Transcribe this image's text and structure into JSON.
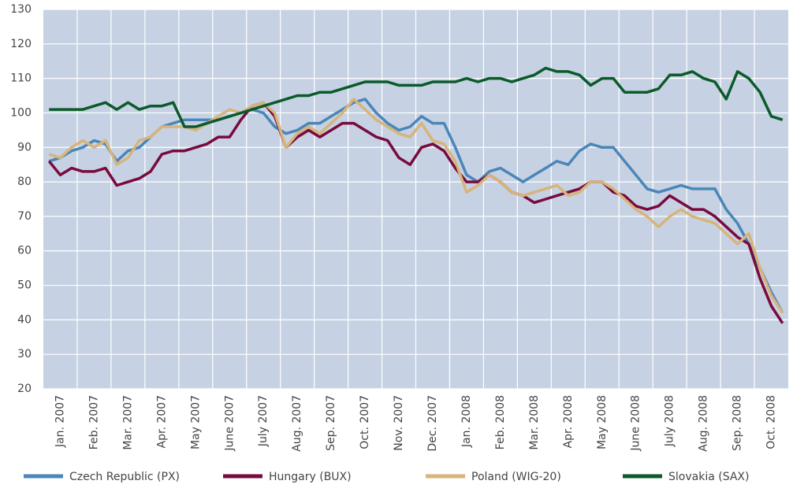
{
  "chart_data": {
    "type": "line",
    "categories": [
      null,
      "Jan. 2007",
      null,
      null,
      "Feb. 2007",
      null,
      null,
      "Mar. 2007",
      null,
      null,
      "Apr. 2007",
      null,
      null,
      "May 2007",
      null,
      null,
      "June 2007",
      null,
      null,
      "July 2007",
      null,
      null,
      "Aug. 2007",
      null,
      null,
      "Sep. 2007",
      null,
      null,
      "Oct. 2007",
      null,
      null,
      "Nov. 2007",
      null,
      null,
      "Dec. 2007",
      null,
      null,
      "Jan. 2008",
      null,
      null,
      "Feb. 2008",
      null,
      null,
      "Mar. 2008",
      null,
      null,
      "Apr. 2008",
      null,
      null,
      "May 2008",
      null,
      null,
      "June 2008",
      null,
      null,
      "July 2008",
      null,
      null,
      "Aug. 2008",
      null,
      null,
      "Sep. 2008",
      null,
      null,
      "Oct. 2008",
      null
    ],
    "series": [
      {
        "name": "Czech Republic (PX)",
        "color": "#4a86b8",
        "values": [
          86,
          87,
          89,
          90,
          92,
          91,
          86,
          89,
          90,
          93,
          96,
          97,
          98,
          98,
          98,
          98,
          99,
          100,
          101,
          100,
          96,
          94,
          95,
          97,
          97,
          99,
          101,
          103,
          104,
          100,
          97,
          95,
          96,
          99,
          97,
          97,
          90,
          82,
          80,
          83,
          84,
          82,
          80,
          82,
          84,
          86,
          85,
          89,
          91,
          90,
          90,
          86,
          82,
          78,
          77,
          78,
          79,
          78,
          78,
          78,
          72,
          68,
          62,
          55,
          48,
          42
        ]
      },
      {
        "name": "Hungary (BUX)",
        "color": "#7a0a3e",
        "values": [
          86,
          82,
          84,
          83,
          83,
          84,
          79,
          80,
          81,
          83,
          88,
          89,
          89,
          90,
          91,
          93,
          93,
          98,
          102,
          103,
          99,
          90,
          93,
          95,
          93,
          95,
          97,
          97,
          95,
          93,
          92,
          87,
          85,
          90,
          91,
          89,
          84,
          80,
          80,
          82,
          80,
          77,
          76,
          74,
          75,
          76,
          77,
          78,
          80,
          80,
          77,
          76,
          73,
          72,
          73,
          76,
          74,
          72,
          72,
          70,
          67,
          64,
          62,
          52,
          44,
          39
        ]
      },
      {
        "name": "Poland (WIG-20)",
        "color": "#d6b47a",
        "values": [
          88,
          87,
          90,
          92,
          90,
          92,
          85,
          87,
          92,
          93,
          96,
          96,
          96,
          95,
          97,
          99,
          101,
          100,
          102,
          103,
          100,
          90,
          94,
          96,
          94,
          97,
          100,
          104,
          101,
          98,
          96,
          94,
          93,
          97,
          92,
          91,
          86,
          77,
          79,
          82,
          80,
          77,
          76,
          77,
          78,
          79,
          76,
          77,
          80,
          80,
          78,
          75,
          72,
          70,
          67,
          70,
          72,
          70,
          69,
          68,
          65,
          62,
          65,
          55,
          47,
          42
        ]
      },
      {
        "name": "Slovakia (SAX)",
        "color": "#0b5a2a",
        "values": [
          101,
          101,
          101,
          101,
          102,
          103,
          101,
          103,
          101,
          102,
          102,
          103,
          96,
          96,
          97,
          98,
          99,
          100,
          101,
          102,
          103,
          104,
          105,
          105,
          106,
          106,
          107,
          108,
          109,
          109,
          109,
          108,
          108,
          108,
          109,
          109,
          109,
          110,
          109,
          110,
          110,
          109,
          110,
          111,
          113,
          112,
          112,
          111,
          108,
          110,
          110,
          106,
          106,
          106,
          107,
          111,
          111,
          112,
          110,
          109,
          104,
          112,
          110,
          106,
          99,
          98
        ]
      }
    ],
    "ylim": [
      20,
      130
    ],
    "yticks": [
      20,
      30,
      40,
      50,
      60,
      70,
      80,
      90,
      100,
      110,
      120,
      130
    ],
    "grid": true
  }
}
